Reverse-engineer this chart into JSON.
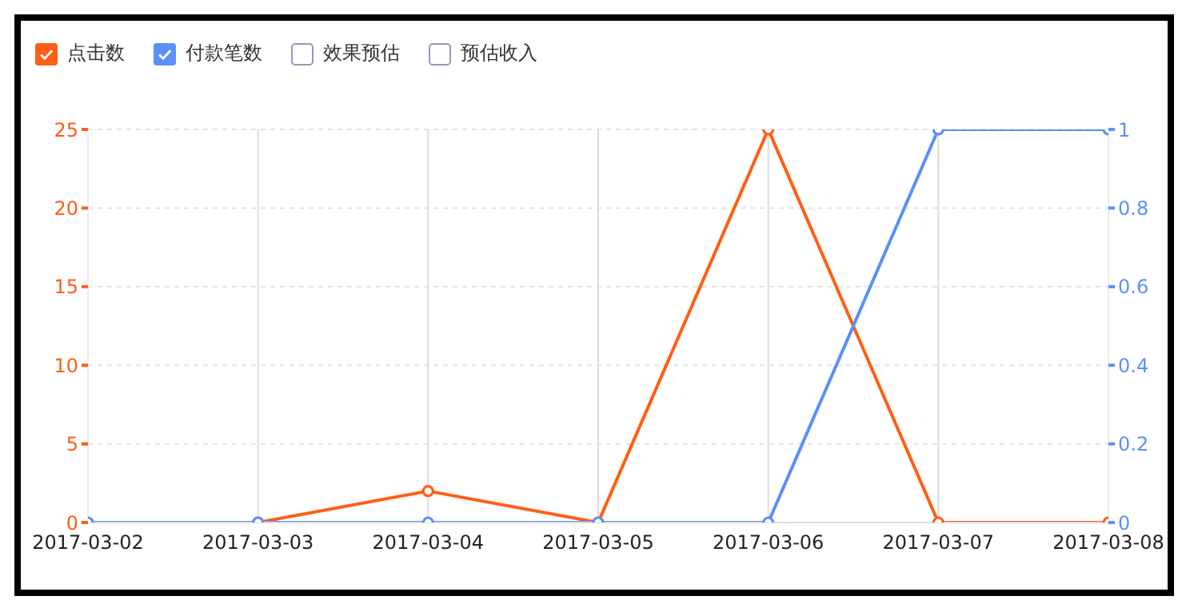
{
  "chart_data": {
    "type": "line",
    "categories": [
      "2017-03-02",
      "2017-03-03",
      "2017-03-04",
      "2017-03-05",
      "2017-03-06",
      "2017-03-07",
      "2017-03-08"
    ],
    "series": [
      {
        "name": "点击数",
        "color": "#ff5e14",
        "values": [
          0,
          0,
          2,
          0,
          25,
          0,
          0
        ]
      },
      {
        "name": "付款笔数",
        "color": "#5b8ff9",
        "axis": "y2",
        "values": [
          0,
          0,
          0,
          0,
          0,
          1,
          1
        ]
      },
      {
        "name": "效果预估",
        "color": "#9a98b8",
        "values": [
          null,
          null,
          null,
          null,
          null,
          null,
          null
        ]
      },
      {
        "name": "预估收入",
        "color": "#9a98b8",
        "values": [
          null,
          null,
          null,
          null,
          null,
          null,
          null
        ]
      }
    ],
    "ylim": [
      0,
      25
    ],
    "yticks": [
      0,
      5,
      10,
      15,
      20,
      25
    ],
    "y2lim": [
      0,
      1
    ],
    "y2ticks": [
      0,
      0.2,
      0.4,
      0.6,
      0.8,
      1
    ],
    "grid": true,
    "legend": "top left",
    "marker": "circle",
    "line_style": "solid"
  }
}
